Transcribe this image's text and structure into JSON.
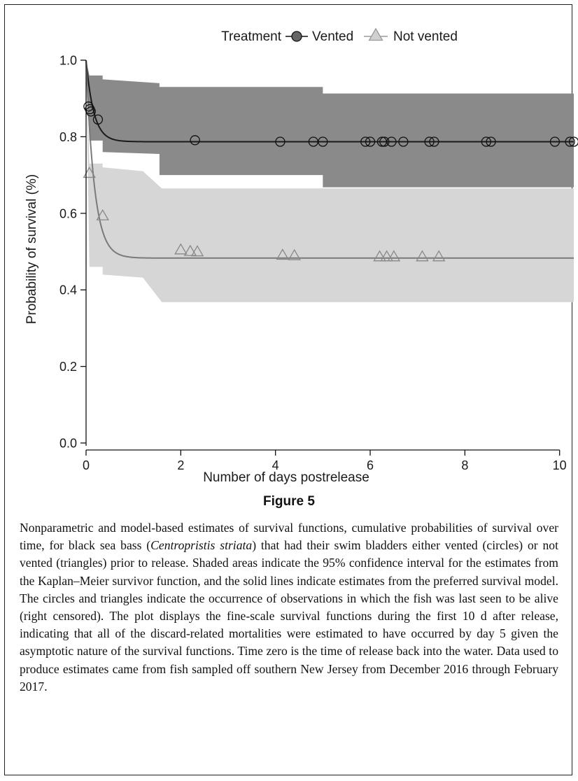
{
  "figure_label": "Figure 5",
  "caption": "Nonparametric and model-based estimates of survival functions, cumulative probabilities of survival over time, for black sea bass (Centropristis striata) that had their swim bladders either vented (circles) or not vented (triangles) prior to release. Shaded areas indicate the 95% confidence interval for the estimates from the Kaplan–Meier survivor function, and the solid lines indicate estimates from the preferred survival model. The circles and triangles indicate the occurrence of observations in which the fish was last seen to be alive (right censored). The plot displays the fine-scale survival functions during the first 10 d after release, indicating that all of the discard-related mortalities were estimated to have occurred by day 5 given the asymptotic nature of the survival functions. Time zero is the time of release back into the water. Data used to produce estimates came from fish sampled off southern New Jersey from December 2016 through February 2017.",
  "chart_data": {
    "type": "line",
    "xlabel": "Number of days postrelease",
    "ylabel": "Probability of survival (%)",
    "xlim": [
      0,
      10.3
    ],
    "ylim": [
      0,
      1.0
    ],
    "x_ticks": [
      0,
      2,
      4,
      6,
      8,
      10
    ],
    "y_ticks": [
      "0.0",
      "0.2",
      "0.4",
      "0.6",
      "0.8",
      "1.0"
    ],
    "grid": false,
    "legend": {
      "title": "Treatment",
      "position": "top",
      "entries": [
        "Vented",
        "Not vented"
      ]
    },
    "series": [
      {
        "name": "Vented",
        "marker": "circle",
        "line_color": "#1a1a1a",
        "band_color": "#8a8a8a",
        "model_curve": {
          "start": 1.0,
          "asymptote": 0.787,
          "rate": 2.8
        },
        "ci_band": {
          "x": [
            0,
            0.07,
            0.07,
            0.35,
            0.35,
            1.55,
            1.55,
            5.0,
            5.0,
            10.3
          ],
          "lower": [
            1.0,
            0.79,
            0.79,
            0.79,
            0.76,
            0.755,
            0.7,
            0.7,
            0.668,
            0.668
          ],
          "upper": [
            1.0,
            0.96,
            0.96,
            0.96,
            0.95,
            0.94,
            0.93,
            0.93,
            0.913,
            0.913
          ]
        },
        "censored_points": [
          {
            "x": 0.05,
            "y": 0.879
          },
          {
            "x": 0.08,
            "y": 0.872
          },
          {
            "x": 0.1,
            "y": 0.866
          },
          {
            "x": 0.25,
            "y": 0.845
          },
          {
            "x": 2.3,
            "y": 0.791
          },
          {
            "x": 4.1,
            "y": 0.787
          },
          {
            "x": 4.8,
            "y": 0.787
          },
          {
            "x": 5.0,
            "y": 0.787
          },
          {
            "x": 5.9,
            "y": 0.787
          },
          {
            "x": 6.0,
            "y": 0.787
          },
          {
            "x": 6.25,
            "y": 0.787
          },
          {
            "x": 6.3,
            "y": 0.787
          },
          {
            "x": 6.45,
            "y": 0.787
          },
          {
            "x": 6.7,
            "y": 0.787
          },
          {
            "x": 7.25,
            "y": 0.787
          },
          {
            "x": 7.35,
            "y": 0.787
          },
          {
            "x": 8.45,
            "y": 0.787
          },
          {
            "x": 8.55,
            "y": 0.787
          },
          {
            "x": 9.9,
            "y": 0.787
          },
          {
            "x": 10.22,
            "y": 0.787
          },
          {
            "x": 10.3,
            "y": 0.787
          }
        ]
      },
      {
        "name": "Not vented",
        "marker": "triangle",
        "line_color": "#7a7a7a",
        "band_color": "#d6d6d6",
        "model_curve": {
          "start": 1.0,
          "asymptote": 0.483,
          "rate": 2.6
        },
        "ci_band": {
          "x": [
            0,
            0.07,
            0.07,
            0.35,
            0.35,
            1.2,
            1.6,
            10.3
          ],
          "lower": [
            1.0,
            0.46,
            0.46,
            0.46,
            0.44,
            0.432,
            0.368,
            0.368
          ],
          "upper": [
            1.0,
            0.73,
            0.73,
            0.73,
            0.72,
            0.71,
            0.665,
            0.665
          ]
        },
        "censored_points": [
          {
            "x": 0.07,
            "y": 0.704
          },
          {
            "x": 0.35,
            "y": 0.593
          },
          {
            "x": 2.0,
            "y": 0.504
          },
          {
            "x": 2.2,
            "y": 0.5
          },
          {
            "x": 2.35,
            "y": 0.499
          },
          {
            "x": 4.15,
            "y": 0.49
          },
          {
            "x": 4.4,
            "y": 0.489
          },
          {
            "x": 6.2,
            "y": 0.486
          },
          {
            "x": 6.35,
            "y": 0.486
          },
          {
            "x": 6.5,
            "y": 0.486
          },
          {
            "x": 7.1,
            "y": 0.486
          },
          {
            "x": 7.45,
            "y": 0.486
          }
        ]
      }
    ]
  }
}
